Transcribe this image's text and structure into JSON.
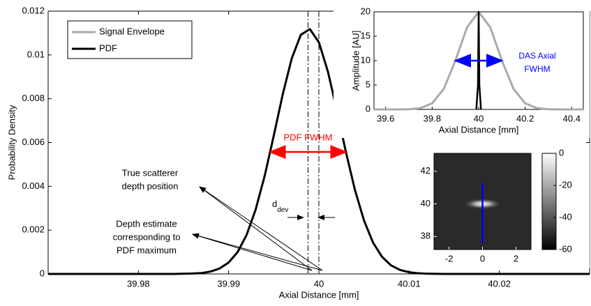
{
  "chart_data": [
    {
      "type": "line",
      "xlabel": "Axial Distance [mm]",
      "ylabel": "Probability Density",
      "xlim": [
        39.97,
        40.03
      ],
      "ylim": [
        0,
        0.012
      ],
      "xticks": [
        39.98,
        39.99,
        40,
        40.01,
        40.02
      ],
      "yticks": [
        0,
        0.002,
        0.004,
        0.006,
        0.008,
        0.01,
        0.012
      ],
      "series": [
        {
          "name": "PDF",
          "color": "#000000",
          "x": [
            39.97,
            39.984,
            39.986,
            39.987,
            39.988,
            39.989,
            39.99,
            39.991,
            39.992,
            39.993,
            39.994,
            39.995,
            39.996,
            39.997,
            39.998,
            39.999,
            40,
            40.001,
            40.002,
            40.003,
            40.004,
            40.005,
            40.006,
            40.007,
            40.008,
            40.009,
            40.01,
            40.011,
            40.012,
            40.014,
            40.03
          ],
          "values": [
            0,
            0,
            2e-05,
            4e-05,
            0.00011,
            0.00025,
            0.00052,
            0.001,
            0.00179,
            0.00295,
            0.00449,
            0.00631,
            0.00821,
            0.00985,
            0.01092,
            0.01118,
            0.01058,
            0.00924,
            0.00746,
            0.00556,
            0.00383,
            0.00244,
            0.00143,
            0.00078,
            0.00039,
            0.00018,
            8e-05,
            3e-05,
            1e-05,
            0,
            0
          ]
        }
      ],
      "vlines": [
        39.9988,
        40
      ],
      "fwhm": {
        "text": "PDF FWHM",
        "x": [
          39.9946,
          40.003
        ],
        "y": 0.00557,
        "color": "#ff0000"
      },
      "annotations": [
        {
          "text": [
            "True scatterer",
            "depth position"
          ]
        },
        {
          "text": [
            "Depth estimate",
            "corresponding to",
            "PDF maximum"
          ]
        }
      ],
      "ddev": {
        "text": "d",
        "sub": "dev"
      }
    },
    {
      "type": "line",
      "xlabel": "Axial Distance [mm]",
      "ylabel": "Amplitude [AU]",
      "xlim": [
        39.55,
        40.45
      ],
      "ylim": [
        0,
        20
      ],
      "xticks": [
        39.6,
        39.8,
        40,
        40.2,
        40.4
      ],
      "yticks": [
        0,
        5,
        10,
        15,
        20
      ],
      "series": [
        {
          "name": "Signal Envelope",
          "color": "#aaaaaa",
          "x": [
            39.55,
            39.65,
            39.7,
            39.75,
            39.8,
            39.85,
            39.9,
            39.95,
            40,
            40.05,
            40.1,
            40.15,
            40.2,
            40.25,
            40.3,
            40.35,
            40.45
          ],
          "values": [
            0,
            0,
            0.04,
            0.26,
            1.25,
            4.21,
            10.01,
            16.82,
            20,
            16.82,
            10.01,
            4.21,
            1.25,
            0.26,
            0.04,
            0,
            0
          ]
        },
        {
          "color": "#000000",
          "x": [
            39.99,
            39.997,
            40,
            40.003,
            40.01
          ],
          "values": [
            0,
            5,
            20,
            5,
            0
          ]
        }
      ],
      "fwhm": {
        "text": [
          "DAS Axial",
          "FWHM"
        ],
        "x": [
          39.9,
          40.1
        ],
        "y": 10,
        "color": "#0000ff"
      }
    },
    {
      "type": "heatmap",
      "xlim": [
        -2.9,
        2.9
      ],
      "ylim": [
        37.2,
        43.1
      ],
      "xticks": [
        -2,
        0,
        2
      ],
      "yticks": [
        38,
        40,
        42
      ],
      "peak": [
        0,
        40
      ],
      "clim": [
        -60,
        0
      ],
      "cticks": [
        0,
        -20,
        -40,
        -60
      ],
      "line": {
        "x": 0,
        "y": [
          37.6,
          41.3
        ],
        "color": "#0000ff"
      }
    }
  ]
}
